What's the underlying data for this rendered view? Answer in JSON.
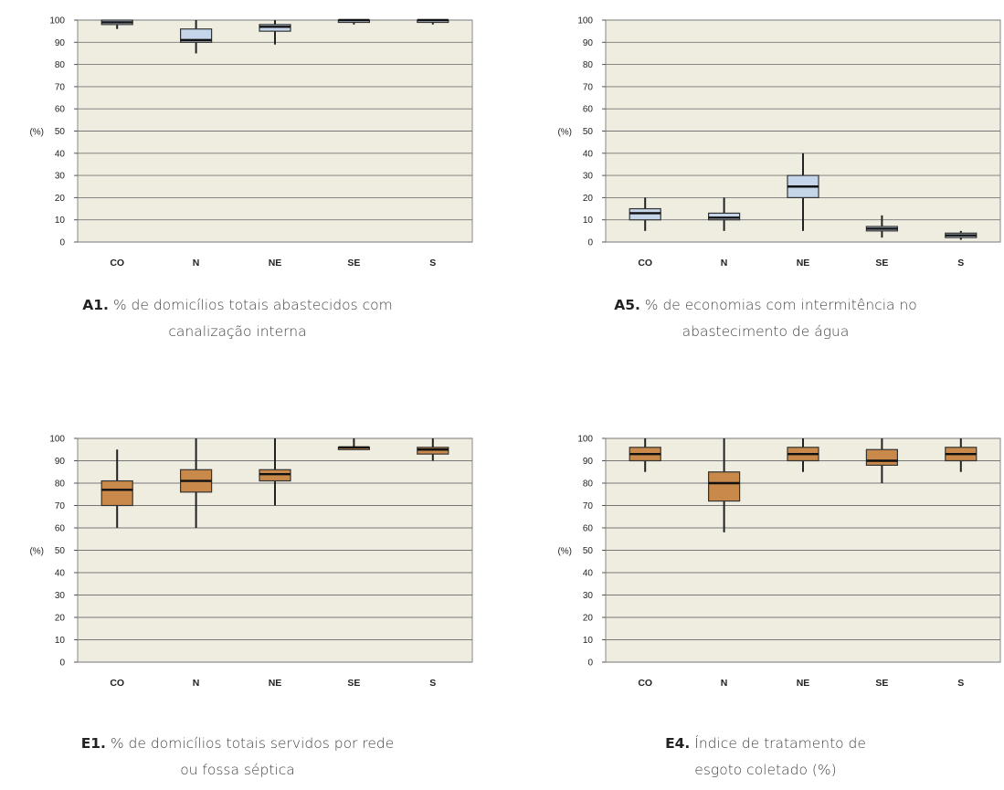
{
  "chart_data": [
    {
      "id": "A1",
      "type": "box",
      "ylabel": "(%)",
      "ylim": [
        0,
        100
      ],
      "yticks": [
        0,
        10,
        20,
        30,
        40,
        50,
        60,
        70,
        80,
        90,
        100
      ],
      "categories": [
        "CO",
        "N",
        "NE",
        "SE",
        "S"
      ],
      "boxes": [
        {
          "whislo": 96,
          "q1": 98,
          "med": 99,
          "q3": 100,
          "whishi": 100
        },
        {
          "whislo": 85,
          "q1": 90,
          "med": 91,
          "q3": 96,
          "whishi": 100
        },
        {
          "whislo": 89,
          "q1": 95,
          "med": 97,
          "q3": 98,
          "whishi": 100
        },
        {
          "whislo": 98,
          "q1": 99,
          "med": 100,
          "q3": 100,
          "whishi": 100
        },
        {
          "whislo": 98,
          "q1": 99,
          "med": 100,
          "q3": 100,
          "whishi": 100
        }
      ],
      "box_color": "#c5d5ea",
      "caption_id": "A1.",
      "caption_line1": " % de domicílios totais abastecidos com",
      "caption_line2": "canalização interna"
    },
    {
      "id": "A5",
      "type": "box",
      "ylabel": "(%)",
      "ylim": [
        0,
        100
      ],
      "yticks": [
        0,
        10,
        20,
        30,
        40,
        50,
        60,
        70,
        80,
        90,
        100
      ],
      "categories": [
        "CO",
        "N",
        "NE",
        "SE",
        "S"
      ],
      "boxes": [
        {
          "whislo": 5,
          "q1": 10,
          "med": 13,
          "q3": 15,
          "whishi": 20
        },
        {
          "whislo": 5,
          "q1": 10,
          "med": 11,
          "q3": 13,
          "whishi": 20
        },
        {
          "whislo": 5,
          "q1": 20,
          "med": 25,
          "q3": 30,
          "whishi": 40
        },
        {
          "whislo": 2,
          "q1": 5,
          "med": 6,
          "q3": 7,
          "whishi": 12
        },
        {
          "whislo": 1,
          "q1": 2,
          "med": 3,
          "q3": 4,
          "whishi": 5
        }
      ],
      "box_color": "#c5d5ea",
      "caption_id": "A5.",
      "caption_line1": " % de economias com intermitência no",
      "caption_line2": "abastecimento de água"
    },
    {
      "id": "E1",
      "type": "box",
      "ylabel": "(%)",
      "ylim": [
        0,
        100
      ],
      "yticks": [
        0,
        10,
        20,
        30,
        40,
        50,
        60,
        70,
        80,
        90,
        100
      ],
      "categories": [
        "CO",
        "N",
        "NE",
        "SE",
        "S"
      ],
      "boxes": [
        {
          "whislo": 60,
          "q1": 70,
          "med": 77,
          "q3": 81,
          "whishi": 95
        },
        {
          "whislo": 60,
          "q1": 76,
          "med": 81,
          "q3": 86,
          "whishi": 100
        },
        {
          "whislo": 70,
          "q1": 81,
          "med": 84,
          "q3": 86,
          "whishi": 100
        },
        {
          "whislo": 96,
          "q1": 96,
          "med": 96,
          "q3": 96,
          "whishi": 100
        },
        {
          "whislo": 90,
          "q1": 93,
          "med": 95,
          "q3": 96,
          "whishi": 100
        }
      ],
      "box_color": "#c8894a",
      "caption_id": "E1.",
      "caption_line1": " % de domicílios totais servidos por rede",
      "caption_line2": "ou fossa séptica"
    },
    {
      "id": "E4",
      "type": "box",
      "ylabel": "(%)",
      "ylim": [
        0,
        100
      ],
      "yticks": [
        0,
        10,
        20,
        30,
        40,
        50,
        60,
        70,
        80,
        90,
        100
      ],
      "categories": [
        "CO",
        "N",
        "NE",
        "SE",
        "S"
      ],
      "boxes": [
        {
          "whislo": 85,
          "q1": 90,
          "med": 93,
          "q3": 96,
          "whishi": 100
        },
        {
          "whislo": 58,
          "q1": 72,
          "med": 80,
          "q3": 85,
          "whishi": 100
        },
        {
          "whislo": 85,
          "q1": 90,
          "med": 93,
          "q3": 96,
          "whishi": 100
        },
        {
          "whislo": 80,
          "q1": 88,
          "med": 90,
          "q3": 95,
          "whishi": 100
        },
        {
          "whislo": 85,
          "q1": 90,
          "med": 93,
          "q3": 96,
          "whishi": 100
        }
      ],
      "box_color": "#c8894a",
      "caption_id": "E4.",
      "caption_line1": " Índice de tratamento de",
      "caption_line2": "esgoto coletado (%)"
    }
  ]
}
